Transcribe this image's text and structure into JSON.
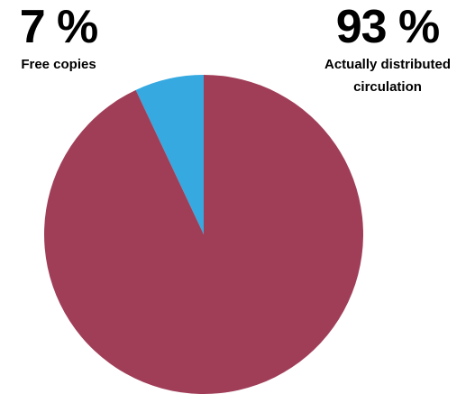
{
  "chart_data": {
    "type": "pie",
    "slices": [
      {
        "label": "Free copies",
        "value": 7,
        "display": "7 %",
        "color": "#35a9e0"
      },
      {
        "label": "Actually distributed circulation",
        "value": 93,
        "display": "93 %",
        "color": "#a03e58"
      }
    ],
    "labels": {
      "free": {
        "percent": "7 %",
        "caption": "Free copies"
      },
      "distributed": {
        "percent": "93 %",
        "caption_line1": "Actually distributed",
        "caption_line2": "circulation"
      }
    }
  }
}
